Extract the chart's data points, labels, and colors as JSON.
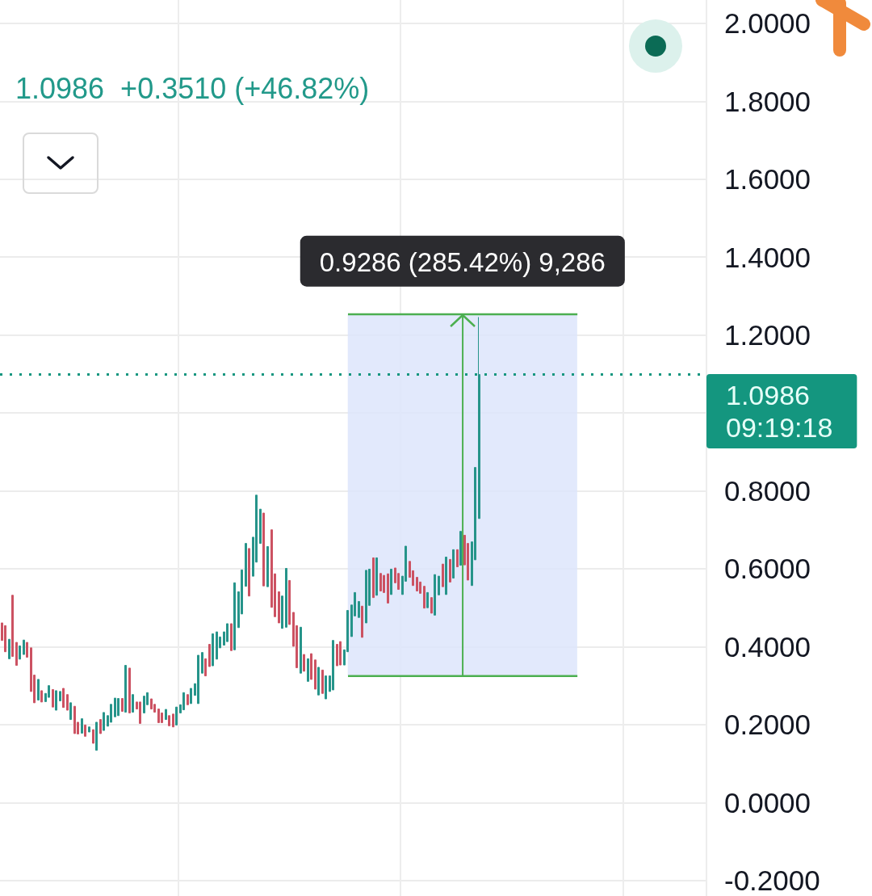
{
  "chart_data": {
    "type": "candlestick",
    "subtitle": "1.0986  +0.3510 (+46.82%)",
    "categories": [
      null,
      null,
      null,
      null,
      null,
      null,
      null,
      null,
      null,
      null,
      null,
      null,
      null,
      null,
      null,
      null,
      null,
      null,
      null,
      null,
      null,
      null,
      null,
      null,
      null,
      null,
      null,
      null,
      null,
      null,
      null,
      null,
      null,
      null,
      null,
      null,
      null,
      null,
      null,
      null,
      null,
      null,
      null,
      null,
      null,
      null,
      null,
      null,
      null,
      null,
      null,
      null,
      null,
      null,
      null,
      null,
      null,
      null,
      null,
      null,
      null,
      null,
      null,
      null,
      null,
      null,
      null,
      null,
      null,
      null,
      null,
      null,
      null,
      null,
      null,
      null,
      null,
      null,
      null,
      null,
      null,
      null,
      null,
      null,
      null,
      null,
      null,
      null,
      null,
      null,
      null,
      null,
      null,
      null,
      null,
      null,
      null,
      null,
      null,
      null,
      null,
      null,
      null,
      null,
      null,
      null,
      null,
      null,
      null,
      null,
      null,
      null,
      null,
      null,
      null,
      null,
      null,
      null,
      null,
      null,
      null,
      null,
      null,
      null,
      null,
      null,
      null,
      null,
      null,
      null,
      null,
      null,
      null,
      null,
      null,
      null,
      null,
      null,
      null,
      null,
      null,
      null,
      null,
      null,
      null,
      null,
      null,
      null,
      null,
      null,
      null,
      null,
      null,
      null,
      null,
      null,
      null,
      null,
      null,
      null,
      null,
      null,
      null,
      null,
      null,
      null,
      null,
      null,
      null,
      null,
      null,
      null,
      null,
      null,
      null,
      null,
      null,
      null,
      null,
      null,
      null,
      null,
      null,
      null,
      null,
      null,
      null,
      null,
      null,
      null,
      null,
      null,
      null,
      null
    ],
    "ohlc": [
      [
        0.461,
        0.461,
        0.416,
        0.416
      ],
      [
        0.454,
        0.454,
        0.387,
        0.387
      ],
      [
        0.369,
        0.419,
        0.369,
        0.419
      ],
      [
        0.532,
        0.532,
        0.375,
        0.375
      ],
      [
        0.411,
        0.411,
        0.352,
        0.352
      ],
      [
        0.368,
        0.402,
        0.368,
        0.402
      ],
      [
        0.38,
        0.417,
        0.38,
        0.417
      ],
      [
        0.411,
        0.411,
        0.373,
        0.373
      ],
      [
        0.397,
        0.397,
        0.285,
        0.285
      ],
      [
        0.327,
        0.327,
        0.256,
        0.256
      ],
      [
        0.263,
        0.316,
        0.263,
        0.316
      ],
      [
        0.287,
        0.287,
        0.258,
        0.258
      ],
      [
        0.259,
        0.28,
        0.259,
        0.28
      ],
      [
        0.27,
        0.3,
        0.27,
        0.3
      ],
      [
        0.29,
        0.29,
        0.245,
        0.245
      ],
      [
        0.237,
        0.287,
        0.237,
        0.287
      ],
      [
        0.261,
        0.285,
        0.261,
        0.285
      ],
      [
        0.293,
        0.293,
        0.244,
        0.244
      ],
      [
        0.277,
        0.277,
        0.237,
        0.237
      ],
      [
        0.213,
        0.256,
        0.213,
        0.256
      ],
      [
        0.247,
        0.247,
        0.177,
        0.177
      ],
      [
        0.206,
        0.206,
        0.176,
        0.176
      ],
      [
        0.178,
        0.215,
        0.178,
        0.215
      ],
      [
        0.199,
        0.199,
        0.17,
        0.17
      ],
      [
        0.181,
        0.194,
        0.181,
        0.194
      ],
      [
        0.187,
        0.187,
        0.152,
        0.152
      ],
      [
        0.134,
        0.206,
        0.134,
        0.206
      ],
      [
        0.213,
        0.213,
        0.177,
        0.177
      ],
      [
        0.185,
        0.231,
        0.185,
        0.231
      ],
      [
        0.196,
        0.223,
        0.196,
        0.223
      ],
      [
        0.206,
        0.252,
        0.206,
        0.252
      ],
      [
        0.22,
        0.268,
        0.22,
        0.268
      ],
      [
        0.223,
        0.267,
        0.223,
        0.267
      ],
      [
        0.267,
        0.267,
        0.234,
        0.234
      ],
      [
        0.232,
        0.352,
        0.232,
        0.352
      ],
      [
        0.345,
        0.345,
        0.23,
        0.23
      ],
      [
        0.232,
        0.277,
        0.232,
        0.277
      ],
      [
        0.258,
        0.258,
        0.24,
        0.24
      ],
      [
        0.258,
        0.258,
        0.203,
        0.203
      ],
      [
        0.23,
        0.273,
        0.23,
        0.273
      ],
      [
        0.251,
        0.282,
        0.251,
        0.282
      ],
      [
        0.266,
        0.266,
        0.24,
        0.24
      ],
      [
        0.252,
        0.252,
        0.232,
        0.232
      ],
      [
        0.24,
        0.24,
        0.205,
        0.205
      ],
      [
        0.23,
        0.23,
        0.205,
        0.205
      ],
      [
        0.213,
        0.239,
        0.213,
        0.239
      ],
      [
        0.223,
        0.223,
        0.197,
        0.197
      ],
      [
        0.227,
        0.227,
        0.194,
        0.194
      ],
      [
        0.199,
        0.245,
        0.199,
        0.245
      ],
      [
        0.23,
        0.251,
        0.23,
        0.251
      ],
      [
        0.238,
        0.282,
        0.238,
        0.282
      ],
      [
        0.277,
        0.277,
        0.251,
        0.251
      ],
      [
        0.254,
        0.293,
        0.254,
        0.293
      ],
      [
        0.275,
        0.305,
        0.275,
        0.305
      ],
      [
        0.254,
        0.378,
        0.254,
        0.378
      ],
      [
        0.332,
        0.385,
        0.332,
        0.385
      ],
      [
        0.369,
        0.369,
        0.325,
        0.325
      ],
      [
        0.406,
        0.406,
        0.349,
        0.349
      ],
      [
        0.351,
        0.433,
        0.351,
        0.433
      ],
      [
        0.368,
        0.438,
        0.368,
        0.438
      ],
      [
        0.397,
        0.425,
        0.397,
        0.425
      ],
      [
        0.404,
        0.438,
        0.404,
        0.438
      ],
      [
        0.413,
        0.459,
        0.413,
        0.459
      ],
      [
        0.459,
        0.459,
        0.39,
        0.39
      ],
      [
        0.392,
        0.564,
        0.392,
        0.564
      ],
      [
        0.449,
        0.541,
        0.449,
        0.541
      ],
      [
        0.484,
        0.597,
        0.484,
        0.597
      ],
      [
        0.555,
        0.665,
        0.555,
        0.665
      ],
      [
        0.652,
        0.652,
        0.53,
        0.53
      ],
      [
        0.581,
        0.681,
        0.581,
        0.681
      ],
      [
        0.617,
        0.789,
        0.617,
        0.789
      ],
      [
        0.665,
        0.753,
        0.665,
        0.753
      ],
      [
        0.743,
        0.743,
        0.556,
        0.556
      ],
      [
        0.554,
        0.657,
        0.554,
        0.657
      ],
      [
        0.7,
        0.7,
        0.501,
        0.501
      ],
      [
        0.587,
        0.587,
        0.477,
        0.477
      ],
      [
        0.541,
        0.541,
        0.461,
        0.461
      ],
      [
        0.447,
        0.53,
        0.447,
        0.53
      ],
      [
        0.45,
        0.601,
        0.45,
        0.601
      ],
      [
        0.57,
        0.57,
        0.457,
        0.457
      ],
      [
        0.488,
        0.488,
        0.401,
        0.401
      ],
      [
        0.454,
        0.454,
        0.346,
        0.346
      ],
      [
        0.332,
        0.45,
        0.332,
        0.45
      ],
      [
        0.38,
        0.38,
        0.337,
        0.337
      ],
      [
        0.311,
        0.369,
        0.311,
        0.369
      ],
      [
        0.382,
        0.382,
        0.316,
        0.316
      ],
      [
        0.366,
        0.366,
        0.291,
        0.291
      ],
      [
        0.276,
        0.347,
        0.276,
        0.347
      ],
      [
        0.34,
        0.34,
        0.28,
        0.28
      ],
      [
        0.266,
        0.325,
        0.266,
        0.325
      ],
      [
        0.285,
        0.325,
        0.285,
        0.325
      ],
      [
        0.289,
        0.416,
        0.289,
        0.416
      ],
      [
        0.406,
        0.406,
        0.351,
        0.351
      ],
      [
        0.413,
        0.413,
        0.353,
        0.353
      ],
      [
        0.353,
        0.392,
        0.353,
        0.392
      ],
      [
        0.387,
        0.493,
        0.387,
        0.493
      ],
      [
        0.426,
        0.507,
        0.426,
        0.507
      ],
      [
        0.479,
        0.539,
        0.479,
        0.539
      ],
      [
        0.475,
        0.516,
        0.475,
        0.516
      ],
      [
        0.504,
        0.504,
        0.424,
        0.424
      ],
      [
        0.461,
        0.596,
        0.461,
        0.596
      ],
      [
        0.506,
        0.599,
        0.506,
        0.599
      ],
      [
        0.628,
        0.628,
        0.526,
        0.526
      ],
      [
        0.532,
        0.628,
        0.532,
        0.628
      ],
      [
        0.588,
        0.588,
        0.543,
        0.543
      ],
      [
        0.583,
        0.583,
        0.539,
        0.539
      ],
      [
        0.587,
        0.587,
        0.512,
        0.512
      ],
      [
        0.534,
        0.599,
        0.534,
        0.599
      ],
      [
        0.602,
        0.602,
        0.564,
        0.564
      ],
      [
        0.588,
        0.588,
        0.547,
        0.547
      ],
      [
        0.534,
        0.581,
        0.534,
        0.581
      ],
      [
        0.568,
        0.658,
        0.568,
        0.658
      ],
      [
        0.619,
        0.619,
        0.578,
        0.578
      ],
      [
        0.595,
        0.595,
        0.557,
        0.557
      ],
      [
        0.578,
        0.578,
        0.543,
        0.543
      ],
      [
        0.566,
        0.566,
        0.537,
        0.537
      ],
      [
        0.555,
        0.555,
        0.499,
        0.499
      ],
      [
        0.5,
        0.539,
        0.5,
        0.539
      ],
      [
        0.526,
        0.526,
        0.486,
        0.486
      ],
      [
        0.481,
        0.585,
        0.481,
        0.585
      ],
      [
        0.533,
        0.581,
        0.533,
        0.581
      ],
      [
        0.612,
        0.612,
        0.554,
        0.554
      ],
      [
        0.534,
        0.63,
        0.534,
        0.63
      ],
      [
        0.624,
        0.624,
        0.566,
        0.566
      ],
      [
        0.576,
        0.649,
        0.576,
        0.649
      ],
      [
        0.649,
        0.649,
        0.605,
        0.605
      ],
      [
        0.609,
        0.696,
        0.609,
        0.696
      ],
      [
        0.686,
        0.686,
        0.61,
        0.61
      ],
      [
        0.665,
        0.665,
        0.571,
        0.571
      ],
      [
        0.557,
        0.669,
        0.557,
        0.669
      ],
      [
        0.623,
        0.86,
        0.623,
        0.86
      ],
      [
        0.729,
        1.246,
        0.729,
        1.0986
      ],
      null,
      null,
      null,
      null,
      null,
      null,
      null,
      null,
      null,
      null,
      null,
      null,
      null,
      null,
      null,
      null,
      null,
      null,
      null,
      null,
      null,
      null,
      null,
      null,
      null,
      null,
      null,
      null,
      null,
      null,
      null,
      null,
      null,
      null,
      null,
      null,
      null,
      null,
      null,
      null,
      null,
      null,
      null,
      null,
      null,
      null,
      null,
      null,
      null,
      null,
      null,
      null,
      null,
      null,
      null,
      null,
      null,
      null,
      null,
      null,
      null,
      null
    ],
    "colors": [
      "#cc5262",
      "#cc5262",
      "#26948a",
      "#cc5262",
      "#cc5262",
      "#26948a",
      "#26948a",
      "#cc5262",
      "#cc5262",
      "#cc5262",
      "#26948a",
      "#cc5262",
      "#26948a",
      "#26948a",
      "#cc5262",
      "#26948a",
      "#26948a",
      "#cc5262",
      "#cc5262",
      "#26948a",
      "#cc5262",
      "#cc5262",
      "#26948a",
      "#cc5262",
      "#26948a",
      "#cc5262",
      "#26948a",
      "#cc5262",
      "#26948a",
      "#26948a",
      "#26948a",
      "#26948a",
      "#26948a",
      "#cc5262",
      "#26948a",
      "#cc5262",
      "#26948a",
      "#cc5262",
      "#cc5262",
      "#26948a",
      "#26948a",
      "#cc5262",
      "#cc5262",
      "#cc5262",
      "#cc5262",
      "#26948a",
      "#cc5262",
      "#cc5262",
      "#26948a",
      "#26948a",
      "#26948a",
      "#cc5262",
      "#26948a",
      "#26948a",
      "#26948a",
      "#26948a",
      "#cc5262",
      "#cc5262",
      "#26948a",
      "#26948a",
      "#26948a",
      "#26948a",
      "#26948a",
      "#cc5262",
      "#26948a",
      "#26948a",
      "#26948a",
      "#26948a",
      "#cc5262",
      "#26948a",
      "#26948a",
      "#26948a",
      "#cc5262",
      "#26948a",
      "#cc5262",
      "#cc5262",
      "#cc5262",
      "#26948a",
      "#26948a",
      "#cc5262",
      "#cc5262",
      "#cc5262",
      "#26948a",
      "#cc5262",
      "#26948a",
      "#cc5262",
      "#cc5262",
      "#26948a",
      "#cc5262",
      "#26948a",
      "#26948a",
      "#26948a",
      "#cc5262",
      "#cc5262",
      "#26948a",
      "#26948a",
      "#26948a",
      "#26948a",
      "#26948a",
      "#cc5262",
      "#26948a",
      "#26948a",
      "#cc5262",
      "#26948a",
      "#cc5262",
      "#cc5262",
      "#cc5262",
      "#26948a",
      "#cc5262",
      "#cc5262",
      "#26948a",
      "#26948a",
      "#cc5262",
      "#cc5262",
      "#cc5262",
      "#cc5262",
      "#cc5262",
      "#26948a",
      "#cc5262",
      "#26948a",
      "#26948a",
      "#cc5262",
      "#26948a",
      "#cc5262",
      "#26948a",
      "#cc5262",
      "#26948a",
      "#cc5262",
      "#cc5262",
      "#26948a",
      "#26948a",
      "#26948a",
      null,
      null,
      null,
      null,
      null,
      null,
      null,
      null,
      null,
      null,
      null,
      null,
      null,
      null,
      null,
      null,
      null,
      null,
      null,
      null,
      null,
      null,
      null,
      null,
      null,
      null,
      null,
      null,
      null,
      null,
      null,
      null,
      null,
      null,
      null,
      null,
      null,
      null,
      null,
      null,
      null,
      null,
      null,
      null,
      null,
      null,
      null,
      null,
      null,
      null,
      null,
      null,
      null,
      null,
      null,
      null,
      null,
      null,
      null,
      null,
      null,
      null
    ],
    "ylim": [
      -0.24,
      2.06
    ],
    "yticks": [
      {
        "value": -0.2,
        "label": "-0.2000"
      },
      {
        "value": 0,
        "label": "0.0000"
      },
      {
        "value": 0.2,
        "label": "0.2000"
      },
      {
        "value": 0.4,
        "label": "0.4000"
      },
      {
        "value": 0.6,
        "label": "0.6000"
      },
      {
        "value": 0.8,
        "label": "0.8000"
      },
      {
        "value": 1,
        "label": null
      },
      {
        "value": 1.2,
        "label": "1.2000"
      },
      {
        "value": 1.4,
        "label": "1.4000"
      },
      {
        "value": 1.6,
        "label": "1.6000"
      },
      {
        "value": 1.8,
        "label": "1.8000"
      },
      {
        "value": 2,
        "label": "2.0000"
      }
    ],
    "grid": true,
    "tick_labels": "y",
    "ref_lines": [
      {
        "axis": "y",
        "value": 1.0986,
        "label": "1.0986\n09:19:18",
        "color": "#14967f",
        "line_style": "dotted"
      }
    ],
    "bands": [
      {
        "axis": "y",
        "from": 0.3253,
        "to": 1.2539,
        "label": "0.9286 (285.42%) 9,286",
        "color": "#dde5fb"
      }
    ]
  }
}
